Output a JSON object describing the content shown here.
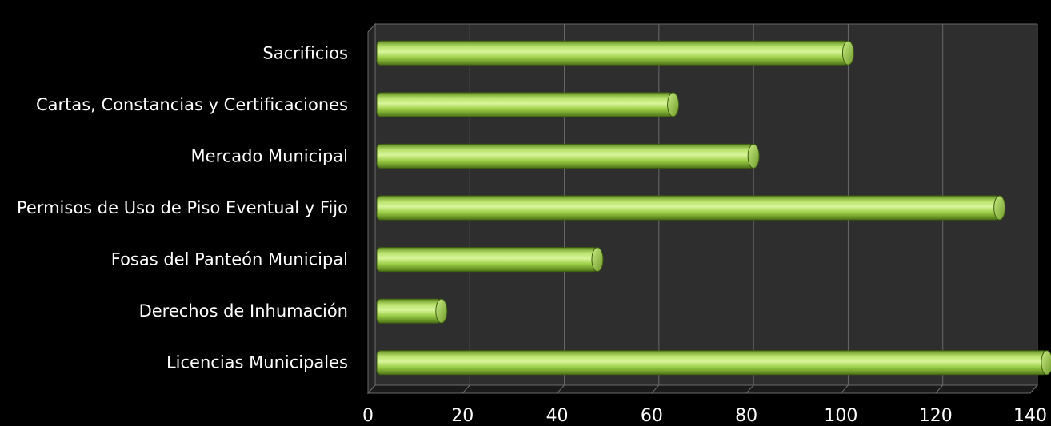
{
  "chart_data": {
    "type": "bar",
    "orientation": "horizontal",
    "title": "",
    "xlabel": "",
    "ylabel": "",
    "categories": [
      "Sacrificios",
      "Cartas, Constancias y Certificaciones",
      "Mercado Municipal",
      "Permisos de Uso de Piso Eventual y Fijo",
      "Fosas del Panteón Municipal",
      "Derechos de Inhumación",
      "Licencias Municipales"
    ],
    "values": [
      100,
      63,
      80,
      132,
      47,
      14,
      142
    ],
    "xlim": [
      0,
      140
    ],
    "xticks": [
      "0",
      "20",
      "40",
      "60",
      "80",
      "100",
      "120",
      "140"
    ],
    "grid": true,
    "legend": "none",
    "style": "3d-cylinder"
  },
  "colors": {
    "background": "#000000",
    "plot_area": "#2e2e2e",
    "bar": "#9acd45",
    "bar_dark": "#5f8a1f",
    "bar_light": "#d9f59a",
    "grid": "#6a6a6a",
    "text": "#ffffff"
  }
}
